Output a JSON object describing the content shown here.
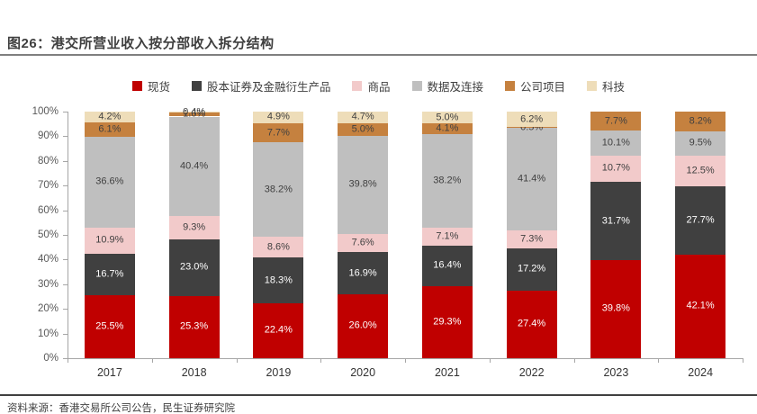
{
  "title": "图26：港交所营业收入按分部收入拆分结构",
  "source": "资料来源：香港交易所公司公告，民生证券研究院",
  "chart_data": {
    "type": "bar",
    "stacked": true,
    "percent": true,
    "title": "图26：港交所营业收入按分部收入拆分结构",
    "categories": [
      "2017",
      "2018",
      "2019",
      "2020",
      "2021",
      "2022",
      "2023",
      "2024"
    ],
    "series": [
      {
        "name": "现货",
        "color": "#c00000",
        "label_color": "#ffffff",
        "values": [
          25.5,
          25.3,
          22.4,
          26.0,
          29.3,
          27.4,
          39.8,
          42.1
        ]
      },
      {
        "name": "股本证券及金融衍生产品",
        "color": "#404040",
        "label_color": "#ffffff",
        "values": [
          16.7,
          23.0,
          18.3,
          16.9,
          16.4,
          17.2,
          31.7,
          27.7
        ]
      },
      {
        "name": "商品",
        "color": "#f2caca",
        "label_color": "#404040",
        "values": [
          10.9,
          9.3,
          8.6,
          7.6,
          7.1,
          7.3,
          10.7,
          12.5
        ]
      },
      {
        "name": "数据及连接",
        "color": "#bfbfbf",
        "label_color": "#404040",
        "values": [
          36.6,
          40.4,
          38.2,
          39.8,
          38.2,
          41.4,
          10.1,
          9.5
        ]
      },
      {
        "name": "公司项目",
        "color": "#c5813f",
        "label_color": "#404040",
        "values": [
          6.1,
          1.6,
          7.7,
          5.0,
          4.1,
          0.5,
          7.7,
          8.2
        ]
      },
      {
        "name": "科技",
        "color": "#eeddb9",
        "label_color": "#404040",
        "values": [
          4.2,
          0.4,
          4.9,
          4.7,
          5.0,
          6.2,
          0,
          0
        ]
      }
    ],
    "ylim": [
      0,
      100
    ],
    "ytick_step": 10,
    "ytick_labels": [
      "0%",
      "10%",
      "20%",
      "30%",
      "40%",
      "50%",
      "60%",
      "70%",
      "80%",
      "90%",
      "100%"
    ],
    "legend_position": "top",
    "grid": false
  }
}
